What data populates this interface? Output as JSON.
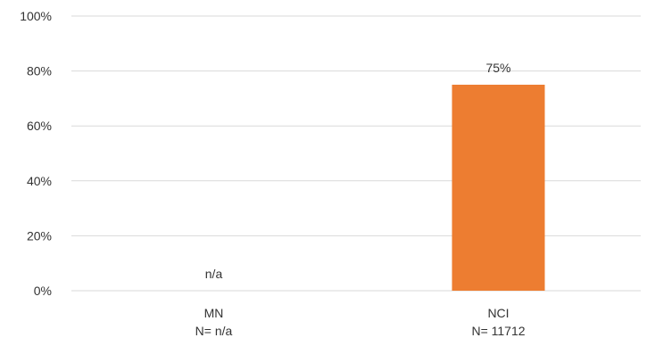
{
  "chart_data": {
    "type": "bar",
    "title": "",
    "xlabel": "",
    "ylabel": "",
    "ylim": [
      0,
      100
    ],
    "y_ticks": [
      "0%",
      "20%",
      "40%",
      "60%",
      "80%",
      "100%"
    ],
    "y_tick_values": [
      0,
      20,
      40,
      60,
      80,
      100
    ],
    "grid": true,
    "legend": "none",
    "categories": [
      {
        "name": "MN",
        "n_label": "N= n/a",
        "value": null,
        "value_label": "n/a"
      },
      {
        "name": "NCI",
        "n_label": "N= 11712",
        "value": 75,
        "value_label": "75%"
      }
    ],
    "colors": {
      "bar": "#ED7D31",
      "grid": "#D9D9D9",
      "text": "#333333"
    }
  }
}
